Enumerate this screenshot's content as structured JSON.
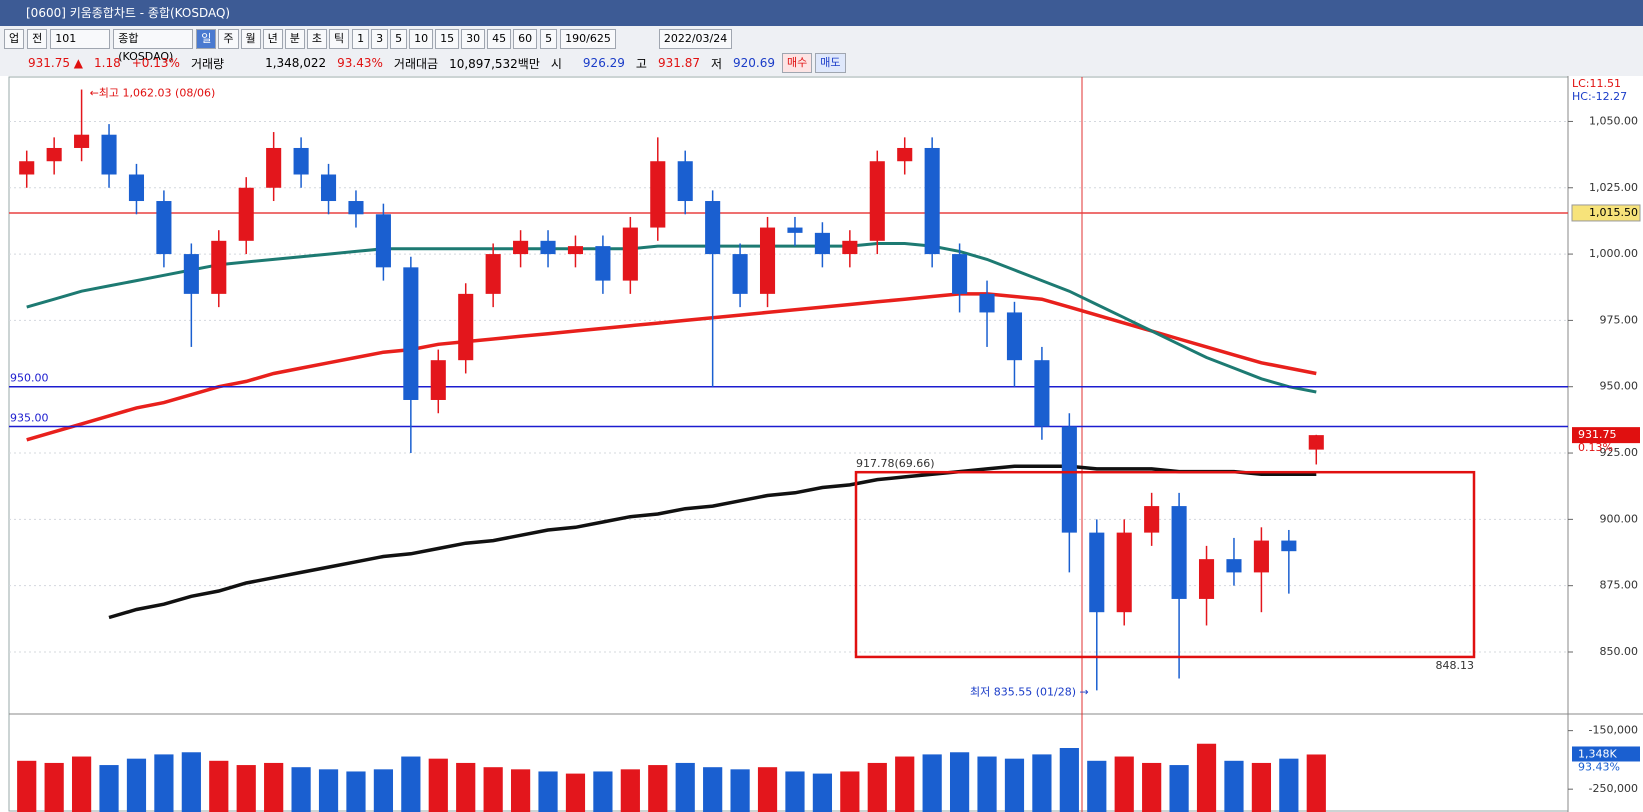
{
  "window": {
    "title": "[0600] 키움종합차트 - 종합(KOSDAQ)"
  },
  "toolbar": {
    "market": "업",
    "scope": "전",
    "code": "101",
    "name": "종합(KOSDAQ)",
    "periods": [
      "일",
      "주",
      "월",
      "년",
      "분",
      "초",
      "틱"
    ],
    "intervals": [
      "1",
      "3",
      "5",
      "10",
      "15",
      "30",
      "45",
      "60"
    ],
    "interval_input": "5",
    "count": "190/625",
    "date": "2022/03/24"
  },
  "info": {
    "price": "931.75 ▲",
    "change": "1.18",
    "change_pct": "+0.13%",
    "volume_label": "거래량",
    "volume": "1,348,022",
    "volume_ratio": "93.43%",
    "amount_label": "거래대금",
    "amount": "10,897,532백만",
    "open_label": "시",
    "open": "926.29",
    "high_label": "고",
    "high": "931.87",
    "low_label": "저",
    "low": "920.69",
    "buy": "매수",
    "sell": "매도"
  },
  "chart_data": {
    "type": "candlestick",
    "open": [
      1030,
      1035,
      1040,
      1045,
      1030,
      1020,
      1000,
      985,
      1005,
      1025,
      1040,
      1030,
      1020,
      1015,
      995,
      945,
      960,
      985,
      1000,
      1005,
      1000,
      1003,
      990,
      1010,
      1035,
      1020,
      1000,
      985,
      1010,
      1008,
      1000,
      1005,
      1035,
      1040,
      1000,
      985,
      978,
      960,
      935,
      895,
      865,
      895,
      905,
      870,
      885,
      880,
      892,
      926.29
    ],
    "high": [
      1039,
      1044,
      1062.03,
      1049,
      1034,
      1024,
      1004,
      1009,
      1029,
      1046,
      1044,
      1034,
      1024,
      1019,
      999,
      964,
      989,
      1004,
      1009,
      1009,
      1007,
      1007,
      1014,
      1044,
      1039,
      1024,
      1004,
      1014,
      1014,
      1012,
      1009,
      1039,
      1044,
      1044,
      1004,
      990,
      982,
      965,
      940,
      900,
      900,
      910,
      910,
      890,
      893,
      897,
      896,
      931.87
    ],
    "low": [
      1025,
      1030,
      1035,
      1025,
      1015,
      995,
      965,
      980,
      1000,
      1020,
      1025,
      1015,
      1010,
      990,
      925,
      940,
      955,
      980,
      995,
      995,
      995,
      985,
      985,
      1005,
      1015,
      950,
      980,
      980,
      1003,
      995,
      995,
      1000,
      1030,
      995,
      978,
      965,
      950,
      930,
      880,
      835.55,
      860,
      890,
      840,
      860,
      875,
      865,
      872,
      920.69
    ],
    "close": [
      1035,
      1040,
      1045,
      1030,
      1020,
      1000,
      985,
      1005,
      1025,
      1040,
      1030,
      1020,
      1015,
      995,
      945,
      960,
      985,
      1000,
      1005,
      1000,
      1003,
      990,
      1010,
      1035,
      1020,
      1000,
      985,
      1010,
      1008,
      1000,
      1005,
      1035,
      1040,
      1000,
      985,
      978,
      960,
      935,
      895,
      865,
      895,
      905,
      870,
      885,
      880,
      892,
      888,
      931.75
    ],
    "up_color": "#e3161c",
    "down_color": "#1a5fd0",
    "ylim": [
      827,
      1066
    ],
    "yticks": [
      {
        "value": 1050,
        "label": "1,050.00"
      },
      {
        "value": 1025,
        "label": "1,025.00"
      },
      {
        "value": 1000,
        "label": "1,000.00"
      },
      {
        "value": 975,
        "label": "975.00"
      },
      {
        "value": 950,
        "label": "950.00"
      },
      {
        "value": 925,
        "label": "925.00"
      },
      {
        "value": 900,
        "label": "900.00"
      },
      {
        "value": 875,
        "label": "875.00"
      },
      {
        "value": 850,
        "label": "850.00"
      }
    ],
    "grid": true,
    "lines": [
      {
        "color": "#e8201c",
        "width": 3.5,
        "values": [
          930,
          933,
          936,
          939,
          942,
          944,
          947,
          950,
          952,
          955,
          957,
          959,
          961,
          963,
          964,
          966,
          967,
          968,
          969,
          970,
          971,
          972,
          973,
          974,
          975,
          976,
          977,
          978,
          979,
          980,
          981,
          982,
          983,
          984,
          985,
          985,
          984,
          983,
          980,
          977,
          974,
          971,
          968,
          965,
          962,
          959,
          957,
          955
        ]
      },
      {
        "color": "#1d7a72",
        "width": 3,
        "values": [
          980,
          983,
          986,
          988,
          990,
          992,
          994,
          996,
          997,
          998,
          999,
          1000,
          1001,
          1002,
          1002,
          1002,
          1002,
          1002,
          1002,
          1002,
          1002,
          1002,
          1002,
          1003,
          1003,
          1003,
          1003,
          1003,
          1003,
          1003,
          1003,
          1004,
          1004,
          1003,
          1001,
          998,
          994,
          990,
          986,
          981,
          976,
          971,
          966,
          961,
          957,
          953,
          950,
          948
        ]
      },
      {
        "color": "#111111",
        "width": 3.5,
        "values": [
          null,
          null,
          null,
          863,
          866,
          868,
          871,
          873,
          876,
          878,
          880,
          882,
          884,
          886,
          887,
          889,
          891,
          892,
          894,
          896,
          897,
          899,
          901,
          902,
          904,
          905,
          907,
          909,
          910,
          912,
          913,
          915,
          916,
          917,
          918,
          919,
          920,
          920,
          920,
          919,
          919,
          919,
          918,
          918,
          918,
          917,
          917,
          917
        ]
      }
    ],
    "hlines": [
      {
        "value": 950,
        "label": "950.00",
        "color": "#1c1ccf",
        "label_pos": "left"
      },
      {
        "value": 935,
        "label": "935.00",
        "color": "#1c1ccf",
        "label_pos": "left"
      },
      {
        "value": 1015.5,
        "label": "1,015.50",
        "color": "#e84040",
        "label_pos": "axis"
      }
    ],
    "high_note": "←최고 1,062.03 (08/06)",
    "low_note": "최저 835.55 (01/28) →",
    "box": {
      "top": 917.78,
      "top_label": "917.78(69.66)",
      "bottom": 848.13,
      "bottom_label": "848.13"
    },
    "last_label": "931.75",
    "change_label": "0.13%",
    "lc": "LC:11.51",
    "hc": "HC:-12.27",
    "volume": {
      "values": [
        1200,
        1150,
        1300,
        1100,
        1250,
        1350,
        1400,
        1200,
        1100,
        1150,
        1050,
        1000,
        950,
        1000,
        1300,
        1250,
        1150,
        1050,
        1000,
        950,
        900,
        950,
        1000,
        1100,
        1150,
        1050,
        1000,
        1050,
        950,
        900,
        950,
        1150,
        1300,
        1350,
        1400,
        1300,
        1250,
        1350,
        1500,
        1200,
        1300,
        1150,
        1100,
        1600,
        1200,
        1150,
        1250,
        1348
      ],
      "ylim": [
        0,
        2250
      ],
      "last_label": "1,348K",
      "ratio_label": "93.43%"
    },
    "oscillator": {
      "ylim": [
        -289000,
        -125000
      ],
      "yticks": [
        {
          "value": -150000,
          "label": "-150,000"
        },
        {
          "value": -250000,
          "label": "-250,000"
        }
      ]
    }
  }
}
